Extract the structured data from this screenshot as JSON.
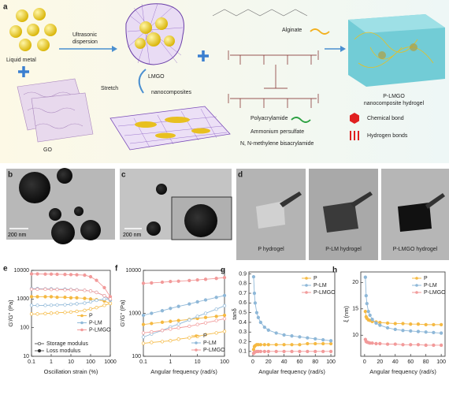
{
  "panel_a": {
    "label": "a",
    "liquid_metal": "Liquid metal",
    "go": "GO",
    "ultrasonic_dispersion": [
      "Ultrasonic",
      "dispersion"
    ],
    "lmgo": "LMGO",
    "stretch": "Stretch",
    "nanocomposites": "nanocomposites",
    "alginate": "Alginate",
    "polyacrylamide": "Polyacrylamide",
    "ammonium": "Ammonium persulfate",
    "mba": "N, N-methylene bisacrylamide",
    "product": [
      "P-LMGO",
      "nanocomposite hydrogel"
    ],
    "chemical_bond": "Chemical bond",
    "hydrogen_bonds": "Hydrogen bonds"
  },
  "panel_b": {
    "label": "b",
    "scale_bar": "200 nm"
  },
  "panel_c": {
    "label": "c",
    "scale_bar": "200 nm"
  },
  "panel_d": {
    "label": "d",
    "captions": [
      "P hydrogel",
      "P-LM hydrogel",
      "P-LMGO hydrogel"
    ]
  },
  "chart_data": [
    {
      "type": "line",
      "panel": "e",
      "x_label": "Oscillation strain (%)",
      "y_label": "G'/G'' (Pa)",
      "xscale": "log",
      "yscale": "log",
      "x": [
        0.1,
        0.2,
        0.5,
        1,
        2,
        5,
        10,
        20,
        50,
        100,
        200,
        500,
        1000
      ],
      "xlim": [
        0.1,
        1000
      ],
      "xticks": [
        0.1,
        1,
        10,
        100,
        1000
      ],
      "ylim": [
        10,
        10000
      ],
      "yticks": [
        10,
        100,
        1000,
        10000
      ],
      "legend": "center right",
      "modulus_legend": [
        "Storage modulus",
        "Loss modulus"
      ],
      "series": [
        {
          "name": "P",
          "color": "#f5b942",
          "values": [
            1200,
            1200,
            1200,
            1200,
            1150,
            1150,
            1100,
            1100,
            1050,
            1000,
            950,
            850,
            700
          ],
          "loss_values": [
            300,
            300,
            310,
            320,
            330,
            340,
            350,
            370,
            400,
            450,
            500,
            600,
            700
          ]
        },
        {
          "name": "P-LM",
          "color": "#8fb8d8",
          "values": [
            2300,
            2300,
            2250,
            2250,
            2200,
            2200,
            2150,
            2100,
            2000,
            1900,
            1700,
            1300,
            900
          ],
          "loss_values": [
            600,
            600,
            600,
            610,
            620,
            630,
            650,
            680,
            720,
            800,
            900,
            1000,
            950
          ]
        },
        {
          "name": "P-LMGO",
          "color": "#f29a9a",
          "values": [
            7500,
            7500,
            7400,
            7400,
            7300,
            7200,
            7100,
            7000,
            6800,
            6000,
            4500,
            2500,
            1200
          ],
          "loss_values": [
            2200,
            2200,
            2200,
            2150,
            2150,
            2100,
            2100,
            2050,
            2000,
            1900,
            1700,
            1300,
            1000
          ]
        }
      ]
    },
    {
      "type": "line",
      "panel": "f",
      "x_label": "Angular frequency (rad/s)",
      "y_label": "G'/G'' (Pa)",
      "xscale": "log",
      "yscale": "log",
      "x": [
        0.1,
        0.2,
        0.5,
        1,
        2,
        5,
        10,
        20,
        50,
        100
      ],
      "xlim": [
        0.1,
        100
      ],
      "xticks": [
        0.1,
        1,
        10,
        100
      ],
      "ylim": [
        100,
        10000
      ],
      "yticks": [
        100,
        1000,
        10000
      ],
      "legend": "lower right",
      "series": [
        {
          "name": "P",
          "color": "#f5b942",
          "values": [
            550,
            580,
            620,
            650,
            680,
            720,
            760,
            800,
            850,
            900
          ],
          "loss_values": [
            200,
            210,
            220,
            230,
            250,
            270,
            290,
            320,
            350,
            380
          ]
        },
        {
          "name": "P-LM",
          "color": "#8fb8d8",
          "values": [
            900,
            1000,
            1150,
            1300,
            1450,
            1650,
            1850,
            2050,
            2350,
            2600
          ],
          "loss_values": [
            280,
            330,
            400,
            480,
            560,
            700,
            850,
            1000,
            1250,
            1500
          ]
        },
        {
          "name": "P-LMGO",
          "color": "#f29a9a",
          "values": [
            5000,
            5100,
            5300,
            5500,
            5600,
            5800,
            6000,
            6200,
            6500,
            6800
          ],
          "loss_values": [
            350,
            370,
            400,
            430,
            460,
            500,
            550,
            600,
            680,
            750
          ]
        }
      ]
    },
    {
      "type": "line",
      "panel": "g",
      "x_label": "Angular frequency (rad/s)",
      "y_label": "tanδ",
      "x": [
        1,
        2,
        3,
        5,
        7,
        10,
        15,
        20,
        30,
        40,
        50,
        60,
        70,
        80,
        90,
        100
      ],
      "xlim": [
        -5,
        105
      ],
      "xticks": [
        0,
        20,
        40,
        60,
        80,
        100
      ],
      "ylim": [
        0.05,
        0.92
      ],
      "yticks": [
        0.1,
        0.2,
        0.3,
        0.4,
        0.5,
        0.6,
        0.7,
        0.8,
        0.9
      ],
      "legend": "upper right",
      "series": [
        {
          "name": "P",
          "color": "#f5b942",
          "values": [
            0.12,
            0.15,
            0.16,
            0.17,
            0.17,
            0.17,
            0.17,
            0.17,
            0.17,
            0.17,
            0.17,
            0.17,
            0.18,
            0.18,
            0.18,
            0.18
          ]
        },
        {
          "name": "P-LM",
          "color": "#8fb8d8",
          "values": [
            0.87,
            0.7,
            0.6,
            0.5,
            0.45,
            0.4,
            0.35,
            0.32,
            0.29,
            0.27,
            0.26,
            0.25,
            0.24,
            0.23,
            0.22,
            0.21
          ]
        },
        {
          "name": "P-LMGO",
          "color": "#f29a9a",
          "values": [
            0.08,
            0.09,
            0.095,
            0.1,
            0.1,
            0.1,
            0.1,
            0.1,
            0.1,
            0.1,
            0.1,
            0.1,
            0.1,
            0.1,
            0.1,
            0.1
          ]
        }
      ]
    },
    {
      "type": "line",
      "panel": "h",
      "x_label": "Angular frequency (rad/s)",
      "y_label": "ξ (nm)",
      "x": [
        1,
        2,
        3,
        5,
        7,
        10,
        15,
        20,
        30,
        40,
        50,
        60,
        70,
        80,
        90,
        100
      ],
      "xlim": [
        -5,
        105
      ],
      "xticks": [
        0,
        20,
        40,
        60,
        80,
        100
      ],
      "ylim": [
        6,
        22
      ],
      "yticks": [
        10,
        15,
        20
      ],
      "legend": "upper right",
      "series": [
        {
          "name": "P",
          "color": "#f5b942",
          "values": [
            14.5,
            13.5,
            13.2,
            12.9,
            12.8,
            12.6,
            12.5,
            12.4,
            12.3,
            12.2,
            12.2,
            12.1,
            12.1,
            12,
            12,
            12
          ]
        },
        {
          "name": "P-LM",
          "color": "#8fb8d8",
          "values": [
            21,
            17.5,
            16,
            14.5,
            13.8,
            13,
            12.3,
            11.9,
            11.4,
            11.1,
            10.9,
            10.8,
            10.7,
            10.6,
            10.5,
            10.4
          ]
        },
        {
          "name": "P-LMGO",
          "color": "#f29a9a",
          "values": [
            9.2,
            8.8,
            8.7,
            8.6,
            8.5,
            8.5,
            8.4,
            8.4,
            8.3,
            8.3,
            8.2,
            8.2,
            8.2,
            8.1,
            8.1,
            8.1
          ]
        }
      ]
    }
  ]
}
